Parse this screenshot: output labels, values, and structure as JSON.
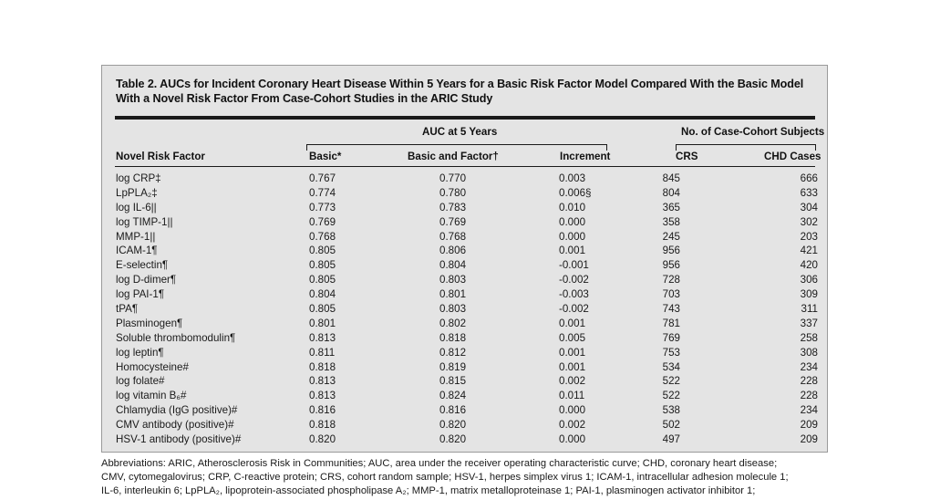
{
  "table": {
    "caption_line1": "Table 2. AUCs for Incident Coronary Heart Disease Within 5 Years for a Basic Risk Factor Model Compared With the Basic Model",
    "caption_line2": "With a Novel Risk Factor From Case-Cohort Studies in the ARIC Study",
    "group_auc": "AUC at 5 Years",
    "group_cases": "No. of Case-Cohort Subjects",
    "col_factor": "Novel Risk Factor",
    "col_basic": "Basic*",
    "col_basic_factor": "Basic and Factor†",
    "col_increment": "Increment",
    "col_crs": "CRS",
    "col_chd": "CHD Cases",
    "rows": [
      {
        "factor": "log CRP‡",
        "basic": "0.767",
        "bf": "0.770",
        "inc": "0.003",
        "crs": "845",
        "chd": "666"
      },
      {
        "factor": "LpPLA₂‡",
        "basic": "0.774",
        "bf": "0.780",
        "inc": "0.006§",
        "crs": "804",
        "chd": "633"
      },
      {
        "factor": "log IL-6||",
        "basic": "0.773",
        "bf": "0.783",
        "inc": "0.010",
        "crs": "365",
        "chd": "304"
      },
      {
        "factor": "log TIMP-1||",
        "basic": "0.769",
        "bf": "0.769",
        "inc": "0.000",
        "crs": "358",
        "chd": "302"
      },
      {
        "factor": "MMP-1||",
        "basic": "0.768",
        "bf": "0.768",
        "inc": "0.000",
        "crs": "245",
        "chd": "203"
      },
      {
        "factor": "ICAM-1¶",
        "basic": "0.805",
        "bf": "0.806",
        "inc": "0.001",
        "crs": "956",
        "chd": "421"
      },
      {
        "factor": "E-selectin¶",
        "basic": "0.805",
        "bf": "0.804",
        "inc": "-0.001",
        "crs": "956",
        "chd": "420"
      },
      {
        "factor": "log D-dimer¶",
        "basic": "0.805",
        "bf": "0.803",
        "inc": "-0.002",
        "crs": "728",
        "chd": "306"
      },
      {
        "factor": "log PAI-1¶",
        "basic": "0.804",
        "bf": "0.801",
        "inc": "-0.003",
        "crs": "703",
        "chd": "309"
      },
      {
        "factor": "tPA¶",
        "basic": "0.805",
        "bf": "0.803",
        "inc": "-0.002",
        "crs": "743",
        "chd": "311"
      },
      {
        "factor": "Plasminogen¶",
        "basic": "0.801",
        "bf": "0.802",
        "inc": "0.001",
        "crs": "781",
        "chd": "337"
      },
      {
        "factor": "Soluble thrombomodulin¶",
        "basic": "0.813",
        "bf": "0.818",
        "inc": "0.005",
        "crs": "769",
        "chd": "258"
      },
      {
        "factor": "log leptin¶",
        "basic": "0.811",
        "bf": "0.812",
        "inc": "0.001",
        "crs": "753",
        "chd": "308"
      },
      {
        "factor": "Homocysteine#",
        "basic": "0.818",
        "bf": "0.819",
        "inc": "0.001",
        "crs": "534",
        "chd": "234"
      },
      {
        "factor": "log folate#",
        "basic": "0.813",
        "bf": "0.815",
        "inc": "0.002",
        "crs": "522",
        "chd": "228"
      },
      {
        "factor": "log vitamin B₆#",
        "basic": "0.813",
        "bf": "0.824",
        "inc": "0.011",
        "crs": "522",
        "chd": "228"
      },
      {
        "factor": "Chlamydia (IgG positive)#",
        "basic": "0.816",
        "bf": "0.816",
        "inc": "0.000",
        "crs": "538",
        "chd": "234"
      },
      {
        "factor": "CMV antibody (positive)#",
        "basic": "0.818",
        "bf": "0.820",
        "inc": "0.002",
        "crs": "502",
        "chd": "209"
      },
      {
        "factor": "HSV-1 antibody (positive)#",
        "basic": "0.820",
        "bf": "0.820",
        "inc": "0.000",
        "crs": "497",
        "chd": "209"
      }
    ]
  },
  "abbreviations": {
    "line1": "Abbreviations: ARIC, Atherosclerosis Risk in Communities; AUC, area under the receiver operating characteristic curve; CHD, coronary heart disease;",
    "line2": "CMV, cytomegalovirus; CRP, C-reactive protein; CRS, cohort random sample; HSV-1, herpes simplex virus 1; ICAM-1, intracellular adhesion molecule 1;",
    "line3": "IL-6, interleukin 6; LpPLA₂, lipoprotein-associated phospholipase A₂; MMP-1, matrix metalloproteinase 1; PAI-1, plasminogen activator inhibitor 1;"
  }
}
